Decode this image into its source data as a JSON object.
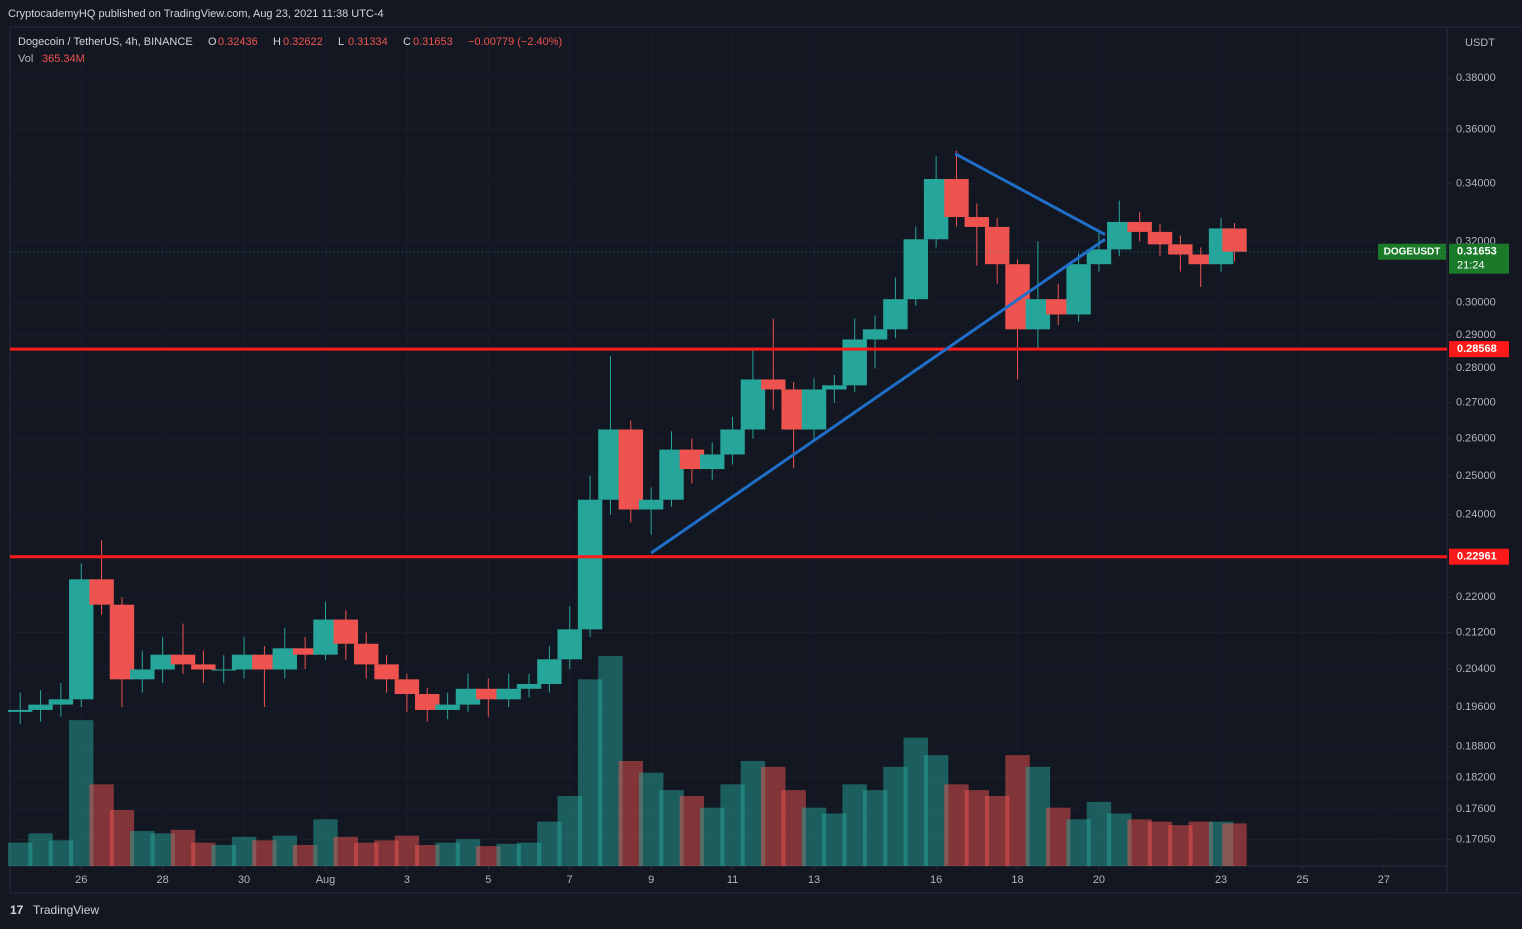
{
  "header": "CryptocademyHQ published on TradingView.com, Aug 23, 2021 11:38 UTC-4",
  "footer": "TradingView",
  "chart_data": {
    "type": "candlestick",
    "symbol": "Dogecoin / TetherUS, 4h, BINANCE",
    "ohlc_legend": [
      {
        "label": "O",
        "value": 0.32436
      },
      {
        "label": "H",
        "value": 0.32622
      },
      {
        "label": "L",
        "value": 0.31334
      },
      {
        "label": "C",
        "value": 0.31653
      }
    ],
    "change": "−0.00779 (−2.40%)",
    "volume_label": "Vol",
    "volume_value": "365.34M",
    "currency": "USDT",
    "ticker": "DOGEUSDT",
    "countdown": "21:24",
    "last_price": 0.31653,
    "up_color": "#26a69a",
    "down_color": "#ef5350",
    "log_scale": true,
    "grid": true,
    "x": [
      -1.5,
      -1,
      -0.5,
      0,
      0.5,
      1,
      1.5,
      2,
      2.5,
      3,
      3.5,
      4,
      4.5,
      5,
      5.5,
      6,
      6.5,
      7,
      7.5,
      8,
      8.5,
      9,
      9.5,
      10,
      10.5,
      11,
      11.5,
      12,
      12.5,
      13,
      13.5,
      14,
      14.5,
      15,
      15.5,
      16,
      16.5,
      17,
      17.5,
      18,
      18.5,
      19,
      19.5,
      20,
      20.5,
      21,
      21.5,
      22,
      22.5,
      23,
      23.5,
      24,
      24.5,
      25,
      25.5,
      26,
      26.5,
      27,
      27.5,
      28,
      28.33
    ],
    "open": [
      0.195,
      0.1954,
      0.1965,
      0.1976,
      0.2242,
      0.2183,
      0.2018,
      0.2039,
      0.2071,
      0.205,
      0.2039,
      0.2039,
      0.2071,
      0.2039,
      0.2085,
      0.2071,
      0.2149,
      0.2095,
      0.205,
      0.2018,
      0.1987,
      0.1954,
      0.1965,
      0.1998,
      0.1976,
      0.1998,
      0.2008,
      0.2061,
      0.2127,
      0.2438,
      0.2625,
      0.2413,
      0.2438,
      0.257,
      0.2518,
      0.2557,
      0.2625,
      0.2767,
      0.2738,
      0.2625,
      0.2738,
      0.275,
      0.2886,
      0.2917,
      0.3011,
      0.3207,
      0.3417,
      0.3283,
      0.3249,
      0.3124,
      0.2917,
      0.3011,
      0.2963,
      0.3124,
      0.3173,
      0.3266,
      0.3232,
      0.319,
      0.3156,
      0.3124,
      0.32436
    ],
    "high": [
      0.199,
      0.1995,
      0.201,
      0.228,
      0.2336,
      0.22,
      0.208,
      0.211,
      0.214,
      0.208,
      0.207,
      0.211,
      0.209,
      0.213,
      0.211,
      0.219,
      0.217,
      0.212,
      0.207,
      0.203,
      0.2,
      0.199,
      0.203,
      0.202,
      0.203,
      0.203,
      0.209,
      0.218,
      0.25,
      0.2836,
      0.265,
      0.247,
      0.262,
      0.26,
      0.259,
      0.266,
      0.286,
      0.295,
      0.276,
      0.277,
      0.278,
      0.295,
      0.296,
      0.308,
      0.325,
      0.35,
      0.352,
      0.333,
      0.328,
      0.314,
      0.32,
      0.306,
      0.316,
      0.323,
      0.334,
      0.33,
      0.326,
      0.322,
      0.318,
      0.328,
      0.32622
    ],
    "low": [
      0.1925,
      0.193,
      0.194,
      0.196,
      0.216,
      0.196,
      0.199,
      0.201,
      0.203,
      0.201,
      0.201,
      0.202,
      0.196,
      0.202,
      0.204,
      0.206,
      0.206,
      0.202,
      0.199,
      0.195,
      0.193,
      0.1935,
      0.195,
      0.194,
      0.196,
      0.198,
      0.199,
      0.204,
      0.211,
      0.24,
      0.238,
      0.235,
      0.242,
      0.248,
      0.249,
      0.253,
      0.26,
      0.268,
      0.252,
      0.26,
      0.27,
      0.273,
      0.28,
      0.289,
      0.299,
      0.318,
      0.325,
      0.312,
      0.306,
      0.2767,
      0.286,
      0.293,
      0.294,
      0.31,
      0.315,
      0.32,
      0.315,
      0.31,
      0.305,
      0.31,
      0.31334
    ],
    "close": [
      0.1954,
      0.1965,
      0.1976,
      0.2242,
      0.2183,
      0.2018,
      0.2039,
      0.2071,
      0.205,
      0.2039,
      0.2039,
      0.2071,
      0.2039,
      0.2085,
      0.2071,
      0.2149,
      0.2095,
      0.205,
      0.2018,
      0.1987,
      0.1954,
      0.1965,
      0.1998,
      0.1976,
      0.1998,
      0.2008,
      0.2061,
      0.2127,
      0.2438,
      0.2625,
      0.2413,
      0.2438,
      0.257,
      0.2518,
      0.2557,
      0.2625,
      0.2767,
      0.2738,
      0.2625,
      0.2738,
      0.275,
      0.2886,
      0.2917,
      0.3011,
      0.3207,
      0.3417,
      0.3283,
      0.3249,
      0.3124,
      0.2917,
      0.3011,
      0.2963,
      0.3124,
      0.3173,
      0.3266,
      0.3232,
      0.319,
      0.3156,
      0.3124,
      0.3244,
      0.31653
    ],
    "volume": [
      200,
      280,
      220,
      1250,
      700,
      480,
      300,
      280,
      310,
      200,
      180,
      250,
      220,
      260,
      180,
      400,
      250,
      200,
      220,
      260,
      180,
      200,
      230,
      170,
      190,
      200,
      380,
      600,
      1600,
      1800,
      900,
      800,
      650,
      600,
      500,
      700,
      900,
      850,
      650,
      500,
      450,
      700,
      650,
      850,
      1100,
      950,
      700,
      650,
      600,
      950,
      850,
      500,
      400,
      550,
      450,
      400,
      380,
      350,
      380,
      380,
      365.34
    ],
    "xlim": [
      -1.75,
      33.55
    ],
    "xticks": [
      {
        "value": 0,
        "label": "26"
      },
      {
        "value": 2,
        "label": "28"
      },
      {
        "value": 4,
        "label": "30"
      },
      {
        "value": 6,
        "label": "Aug"
      },
      {
        "value": 8,
        "label": "3"
      },
      {
        "value": 10,
        "label": "5"
      },
      {
        "value": 12,
        "label": "7"
      },
      {
        "value": 14,
        "label": "9"
      },
      {
        "value": 16,
        "label": "11"
      },
      {
        "value": 18,
        "label": "13"
      },
      {
        "value": 21,
        "label": "16"
      },
      {
        "value": 23,
        "label": "18"
      },
      {
        "value": 25,
        "label": "20"
      },
      {
        "value": 28,
        "label": "23"
      },
      {
        "value": 30,
        "label": "25"
      },
      {
        "value": 32,
        "label": "27"
      }
    ],
    "ylim": [
      0.1658,
      0.401
    ],
    "yticks": [
      {
        "value": 0.38,
        "label": "0.38000"
      },
      {
        "value": 0.36,
        "label": "0.36000"
      },
      {
        "value": 0.34,
        "label": "0.34000"
      },
      {
        "value": 0.32,
        "label": "0.32000"
      },
      {
        "value": 0.3,
        "label": "0.30000"
      },
      {
        "value": 0.29,
        "label": "0.29000"
      },
      {
        "value": 0.28,
        "label": "0.28000"
      },
      {
        "value": 0.27,
        "label": "0.27000"
      },
      {
        "value": 0.26,
        "label": "0.26000"
      },
      {
        "value": 0.25,
        "label": "0.25000"
      },
      {
        "value": 0.24,
        "label": "0.24000"
      },
      {
        "value": 0.22,
        "label": "0.22000"
      },
      {
        "value": 0.212,
        "label": "0.21200"
      },
      {
        "value": 0.204,
        "label": "0.20400"
      },
      {
        "value": 0.196,
        "label": "0.19600"
      },
      {
        "value": 0.188,
        "label": "0.18800"
      },
      {
        "value": 0.182,
        "label": "0.18200"
      },
      {
        "value": 0.176,
        "label": "0.17600"
      },
      {
        "value": 0.1705,
        "label": "0.17050"
      }
    ],
    "levels": [
      {
        "value": 0.28568,
        "color": "#ff1a1a"
      },
      {
        "value": 0.22961,
        "color": "#ff1a1a"
      }
    ],
    "trendlines": [
      {
        "color": "#1f6fc9",
        "x": [
          14,
          25.15
        ],
        "y": [
          0.2305,
          0.3207
        ]
      },
      {
        "color": "#1f6fc9",
        "x": [
          21.47,
          25.15
        ],
        "y": [
          0.3509,
          0.3223
        ]
      }
    ]
  }
}
